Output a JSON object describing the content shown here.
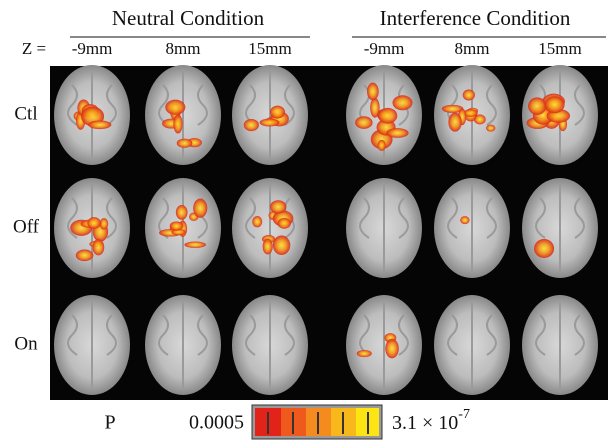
{
  "header": {
    "neutral": "Neutral Condition",
    "interference": "Interference Condition",
    "z_label": "Z =",
    "neutral_columns": [
      "-9mm",
      "8mm",
      "15mm"
    ],
    "interference_columns": [
      "-9mm",
      "8mm",
      "15mm"
    ]
  },
  "rows": [
    "Ctl",
    "Off",
    "On"
  ],
  "colorbar": {
    "label": "P",
    "low": "0.0005",
    "high_base": "3.1 × 10",
    "high_exponent": "-7"
  }
}
